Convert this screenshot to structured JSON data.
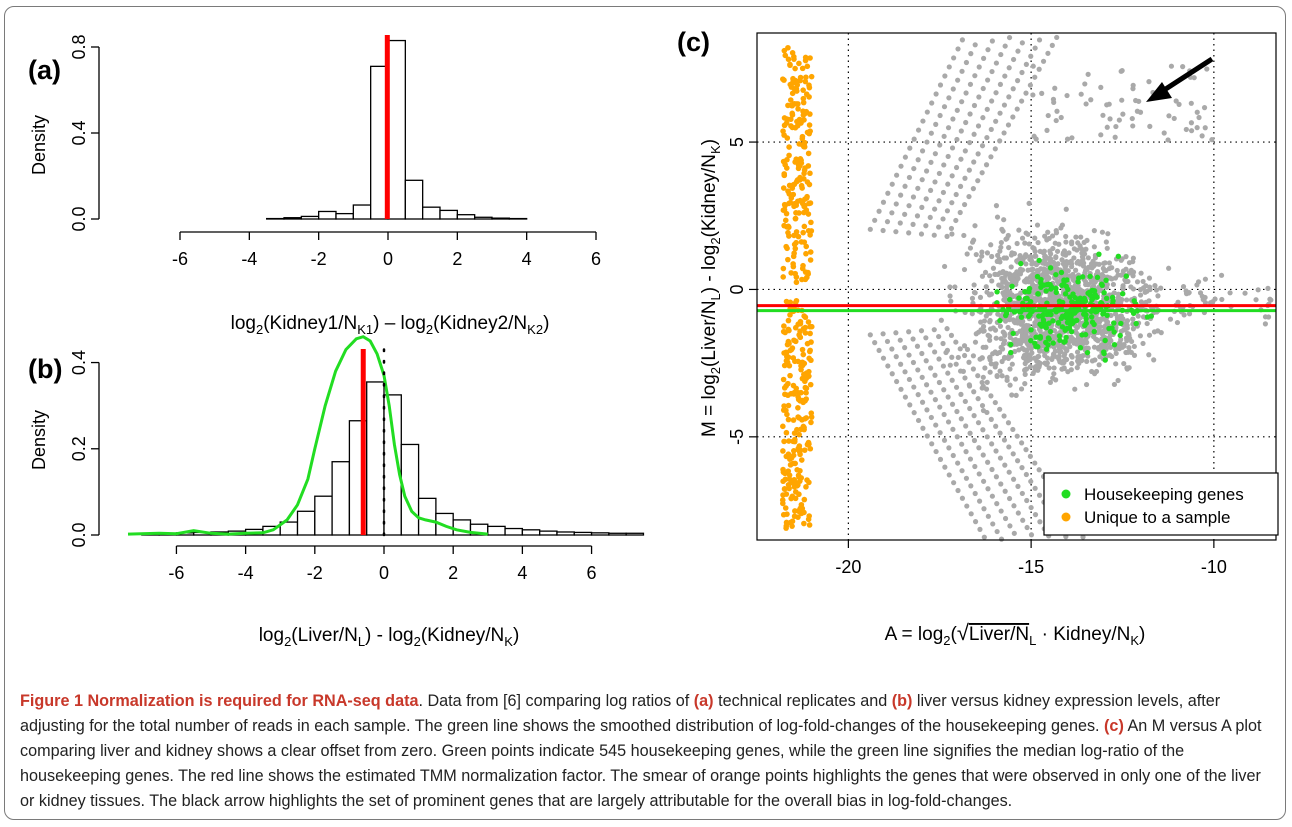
{
  "colors": {
    "red": "#ff0000",
    "green": "#22dd22",
    "orange": "#ffa500",
    "gray": "#a9a9a9",
    "caption_accent": "#c8382a"
  },
  "icons": {
    "arrow": "arrow-icon"
  },
  "caption": {
    "title": "Figure 1 Normalization is required for RNA-seq data",
    "t1": ". Data from [6] comparing log ratios of ",
    "a": "(a)",
    "t2": " technical replicates and ",
    "b": "(b)",
    "t3": " liver versus kidney expression levels, after adjusting for the total number of reads in each sample. The green line shows the smoothed distribution of log-fold-changes of the housekeeping genes. ",
    "c": "(c)",
    "t4": " An M versus A plot comparing liver and kidney shows a clear offset from zero. Green points indicate 545 housekeeping genes, while the green line signifies the median log-ratio of the housekeeping genes. The red line shows the estimated TMM normalization factor. The smear of orange points highlights the genes that were observed in only one of the liver or kidney tissues. The black arrow highlights the set of prominent genes that are largely attributable for the overall bias in log-fold-changes."
  },
  "chart_data": [
    {
      "panel": "(a)",
      "type": "bar",
      "ylabel": "Density",
      "xlabel": {
        "t1": "log",
        "s1": "2",
        "t2": "(Kidney1/N",
        "s2": "K1",
        "t3": ") – log",
        "s3": "2",
        "t4": "(Kidney2/N",
        "s4": "K2",
        "t5": ")"
      },
      "xlim": [
        -6,
        6
      ],
      "ylim": [
        0,
        0.8
      ],
      "xticks": [
        -6,
        -4,
        -2,
        0,
        2,
        4,
        6
      ],
      "xtick_labels": [
        "-6",
        "-4",
        "-2",
        "0",
        "2",
        "4",
        "6"
      ],
      "yticks": [
        0,
        0.4,
        0.8
      ],
      "ytick_labels": [
        "0.0",
        "0.4",
        "0.8"
      ],
      "bin_width": 0.5,
      "bins": [
        [
          -3.5,
          0.002
        ],
        [
          -3,
          0.006
        ],
        [
          -2.5,
          0.012
        ],
        [
          -2,
          0.035
        ],
        [
          -1.5,
          0.025
        ],
        [
          -1,
          0.065
        ],
        [
          -0.5,
          0.71
        ],
        [
          0,
          0.83
        ],
        [
          0.5,
          0.18
        ],
        [
          1,
          0.055
        ],
        [
          1.5,
          0.04
        ],
        [
          2,
          0.02
        ],
        [
          2.5,
          0.008
        ],
        [
          3,
          0.004
        ],
        [
          3.5,
          0.002
        ]
      ],
      "vline": -0.02
    },
    {
      "panel": "(b)",
      "type": "bar",
      "ylabel": "Density",
      "xlabel": {
        "t1": "log",
        "s1": "2",
        "t2": "(Liver/N",
        "s2": "L",
        "t3": ") - log",
        "s3": "2",
        "t4": "(Kidney/N",
        "s4": "K",
        "t5": ")"
      },
      "xlim": [
        -7.4,
        7.4
      ],
      "ylim": [
        0,
        0.45
      ],
      "xticks": [
        -6,
        -4,
        -2,
        0,
        2,
        4,
        6
      ],
      "xtick_labels": [
        "-6",
        "-4",
        "-2",
        "0",
        "2",
        "4",
        "6"
      ],
      "yticks": [
        0,
        0.2,
        0.4
      ],
      "ytick_labels": [
        "0.0",
        "0.2",
        "0.4"
      ],
      "bin_width": 0.5,
      "bins": [
        [
          -7,
          0.003
        ],
        [
          -6.5,
          0.004
        ],
        [
          -6,
          0.005
        ],
        [
          -5.5,
          0.006
        ],
        [
          -5,
          0.007
        ],
        [
          -4.5,
          0.009
        ],
        [
          -4,
          0.013
        ],
        [
          -3.5,
          0.02
        ],
        [
          -3,
          0.03
        ],
        [
          -2.5,
          0.055
        ],
        [
          -2,
          0.09
        ],
        [
          -1.5,
          0.17
        ],
        [
          -1,
          0.265
        ],
        [
          -0.5,
          0.355
        ],
        [
          0,
          0.325
        ],
        [
          0.5,
          0.21
        ],
        [
          1,
          0.085
        ],
        [
          1.5,
          0.05
        ],
        [
          2,
          0.035
        ],
        [
          2.5,
          0.025
        ],
        [
          3,
          0.02
        ],
        [
          3.5,
          0.015
        ],
        [
          4,
          0.012
        ],
        [
          4.5,
          0.009
        ],
        [
          5,
          0.007
        ],
        [
          5.5,
          0.006
        ],
        [
          6,
          0.005
        ],
        [
          6.5,
          0.004
        ],
        [
          7,
          0.004
        ]
      ],
      "vline": -0.6,
      "dotted_vline": 0,
      "green_curve": [
        [
          -7.4,
          0.002
        ],
        [
          -6.5,
          0.004
        ],
        [
          -6,
          0.003
        ],
        [
          -5.5,
          0.01
        ],
        [
          -5,
          0.004
        ],
        [
          -4.5,
          0.002
        ],
        [
          -4,
          0.004
        ],
        [
          -3.5,
          0.005
        ],
        [
          -3.2,
          0.012
        ],
        [
          -2.8,
          0.035
        ],
        [
          -2.5,
          0.07
        ],
        [
          -2.2,
          0.13
        ],
        [
          -2,
          0.2
        ],
        [
          -1.7,
          0.3
        ],
        [
          -1.4,
          0.38
        ],
        [
          -1.1,
          0.43
        ],
        [
          -0.8,
          0.455
        ],
        [
          -0.6,
          0.46
        ],
        [
          -0.4,
          0.45
        ],
        [
          -0.2,
          0.42
        ],
        [
          0,
          0.37
        ],
        [
          0.15,
          0.3
        ],
        [
          0.3,
          0.21
        ],
        [
          0.45,
          0.14
        ],
        [
          0.6,
          0.09
        ],
        [
          0.8,
          0.055
        ],
        [
          1,
          0.04
        ],
        [
          1.2,
          0.035
        ],
        [
          1.5,
          0.03
        ],
        [
          1.8,
          0.02
        ],
        [
          2.1,
          0.012
        ],
        [
          2.5,
          0.006
        ],
        [
          3,
          0.002
        ]
      ]
    },
    {
      "panel": "(c)",
      "type": "scatter",
      "ylabel": {
        "t1": "M = log",
        "s1": "2",
        "t2": "(Liver/N",
        "s2": "L",
        "t3": ") - log",
        "s3": "2",
        "t4": "(Kidney/N",
        "s4": "K",
        "t5": ")"
      },
      "xlabel": {
        "t1": "A = log",
        "s1": "2",
        "t2": "(",
        "sqrt1": "Liver/N",
        "sub1": "L",
        "dot": " · ",
        "sqrt2": "Kidney/N",
        "sub2": "K",
        "t3": ")"
      },
      "xlim": [
        -22.5,
        -8.3
      ],
      "ylim": [
        -8.5,
        8.7
      ],
      "xticks": [
        -20,
        -15,
        -10
      ],
      "xtick_labels": [
        "-20",
        "-15",
        "-10"
      ],
      "yticks": [
        -5,
        0,
        5
      ],
      "ytick_labels": [
        "-5",
        "0",
        "5"
      ],
      "grid_x": [
        -20,
        -15,
        -10
      ],
      "grid_y": [
        -5,
        0,
        5
      ],
      "red_line_y": -0.55,
      "green_line_y": -0.72,
      "housekeeping_count": 545,
      "legend": {
        "position": "bottom-right",
        "items": [
          {
            "label": "Housekeeping genes",
            "color": "#22dd22"
          },
          {
            "label": "Unique to a sample",
            "color": "#ffa500"
          }
        ]
      },
      "unique_x_range": [
        -21.8,
        -21
      ],
      "arrow_target": [
        -10.9,
        7
      ]
    }
  ]
}
